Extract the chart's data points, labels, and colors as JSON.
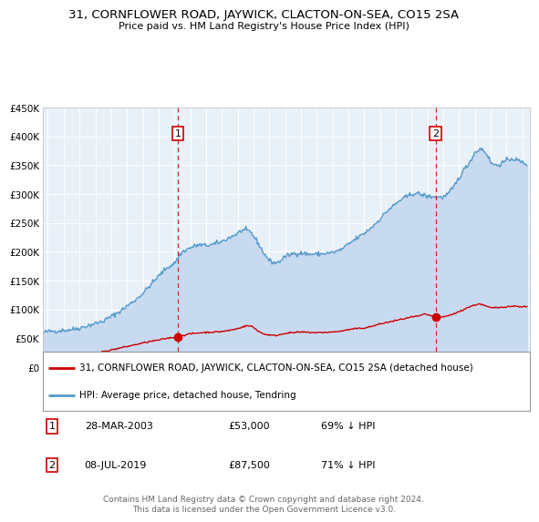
{
  "title": "31, CORNFLOWER ROAD, JAYWICK, CLACTON-ON-SEA, CO15 2SA",
  "subtitle": "Price paid vs. HM Land Registry's House Price Index (HPI)",
  "plot_bg_color": "#e8f0f8",
  "hpi_color": "#5599cc",
  "hpi_fill_color": "#c8daf0",
  "price_color": "#cc0000",
  "sale1_date": 2003.22,
  "sale1_price": 53000,
  "sale2_date": 2019.52,
  "sale2_price": 87500,
  "legend1": "31, CORNFLOWER ROAD, JAYWICK, CLACTON-ON-SEA, CO15 2SA (detached house)",
  "legend2": "HPI: Average price, detached house, Tendring",
  "annotation1_date": "28-MAR-2003",
  "annotation1_price": "£53,000",
  "annotation1_hpi": "69% ↓ HPI",
  "annotation2_date": "08-JUL-2019",
  "annotation2_price": "£87,500",
  "annotation2_hpi": "71% ↓ HPI",
  "footer": "Contains HM Land Registry data © Crown copyright and database right 2024.\nThis data is licensed under the Open Government Licence v3.0.",
  "ylim": [
    0,
    450000
  ],
  "xlim_start": 1994.7,
  "xlim_end": 2025.5
}
